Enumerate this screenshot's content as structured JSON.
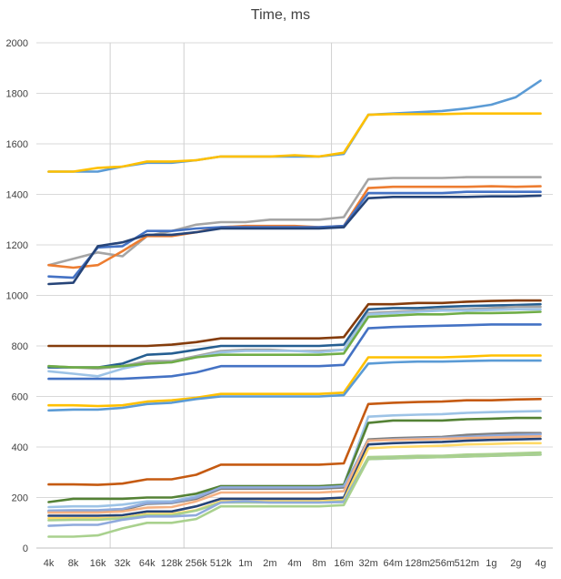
{
  "chart_data": {
    "type": "line",
    "title": "Time, ms",
    "xlabel": "",
    "ylabel": "",
    "ylim": [
      0,
      2000
    ],
    "y_ticks": [
      0,
      200,
      400,
      600,
      800,
      1000,
      1200,
      1400,
      1600,
      1800,
      2000
    ],
    "grid": "horizontal and selected vertical",
    "vertical_gridlines_at": [
      "32k",
      "256k",
      "16m"
    ],
    "legend": "none",
    "categories": [
      "4k",
      "8k",
      "16k",
      "32k",
      "64k",
      "128k",
      "256k",
      "512k",
      "1m",
      "2m",
      "4m",
      "8m",
      "16m",
      "32m",
      "64m",
      "128m",
      "256m",
      "512m",
      "1g",
      "2g",
      "4g"
    ],
    "series": [
      {
        "color": "#5b9bd5",
        "values": [
          1490,
          1490,
          1490,
          1510,
          1525,
          1525,
          1535,
          1550,
          1550,
          1550,
          1550,
          1550,
          1560,
          1715,
          1720,
          1725,
          1730,
          1740,
          1755,
          1785,
          1850
        ]
      },
      {
        "color": "#ffc000",
        "values": [
          1490,
          1490,
          1505,
          1510,
          1530,
          1530,
          1535,
          1550,
          1550,
          1550,
          1555,
          1550,
          1565,
          1715,
          1718,
          1718,
          1718,
          1720,
          1720,
          1720,
          1720
        ]
      },
      {
        "color": "#a5a5a5",
        "values": [
          1120,
          1145,
          1170,
          1155,
          1235,
          1255,
          1280,
          1290,
          1290,
          1300,
          1300,
          1300,
          1310,
          1460,
          1465,
          1465,
          1465,
          1468,
          1468,
          1468,
          1468
        ]
      },
      {
        "color": "#ed7d31",
        "values": [
          1120,
          1110,
          1120,
          1175,
          1235,
          1235,
          1250,
          1270,
          1275,
          1275,
          1275,
          1270,
          1275,
          1425,
          1430,
          1430,
          1430,
          1430,
          1432,
          1430,
          1432
        ]
      },
      {
        "color": "#4472c4",
        "values": [
          1075,
          1070,
          1190,
          1195,
          1255,
          1255,
          1265,
          1270,
          1270,
          1270,
          1270,
          1270,
          1275,
          1405,
          1405,
          1405,
          1405,
          1410,
          1410,
          1410,
          1410
        ]
      },
      {
        "color": "#264478",
        "values": [
          1045,
          1050,
          1195,
          1210,
          1240,
          1240,
          1250,
          1265,
          1265,
          1265,
          1265,
          1265,
          1270,
          1385,
          1390,
          1390,
          1390,
          1390,
          1392,
          1392,
          1395
        ]
      },
      {
        "color": "#843c0c",
        "values": [
          800,
          800,
          800,
          800,
          800,
          805,
          815,
          830,
          830,
          830,
          830,
          830,
          835,
          965,
          965,
          970,
          970,
          975,
          978,
          980,
          980
        ]
      },
      {
        "color": "#255e91",
        "values": [
          715,
          715,
          715,
          730,
          765,
          770,
          785,
          800,
          800,
          800,
          800,
          800,
          805,
          945,
          950,
          950,
          955,
          958,
          960,
          962,
          965
        ]
      },
      {
        "color": "#a5a5a5",
        "values": [
          720,
          715,
          710,
          720,
          740,
          740,
          760,
          780,
          785,
          785,
          780,
          780,
          785,
          930,
          935,
          940,
          945,
          945,
          950,
          955,
          955
        ]
      },
      {
        "color": "#9dc3e6",
        "values": [
          700,
          690,
          680,
          710,
          730,
          735,
          755,
          775,
          780,
          780,
          780,
          775,
          785,
          925,
          930,
          935,
          940,
          940,
          942,
          945,
          945
        ]
      },
      {
        "color": "#70ad47",
        "values": [
          720,
          715,
          715,
          720,
          730,
          735,
          755,
          765,
          765,
          765,
          765,
          765,
          770,
          915,
          920,
          925,
          925,
          930,
          930,
          932,
          935
        ]
      },
      {
        "color": "#4472c4",
        "values": [
          670,
          670,
          670,
          670,
          675,
          680,
          695,
          720,
          720,
          720,
          720,
          720,
          725,
          870,
          875,
          878,
          880,
          882,
          885,
          885,
          885
        ]
      },
      {
        "color": "#ffc000",
        "values": [
          565,
          565,
          562,
          565,
          580,
          585,
          595,
          610,
          610,
          610,
          610,
          610,
          615,
          755,
          755,
          755,
          755,
          758,
          762,
          762,
          762
        ]
      },
      {
        "color": "#5b9bd5",
        "values": [
          545,
          548,
          548,
          555,
          570,
          575,
          590,
          600,
          600,
          600,
          600,
          600,
          605,
          730,
          735,
          738,
          738,
          740,
          742,
          742,
          742
        ]
      },
      {
        "color": "#c55a11",
        "values": [
          252,
          252,
          250,
          255,
          272,
          272,
          290,
          330,
          330,
          330,
          330,
          330,
          335,
          570,
          575,
          578,
          580,
          585,
          585,
          588,
          590
        ]
      },
      {
        "color": "#9dc3e6",
        "values": [
          162,
          165,
          165,
          172,
          185,
          185,
          205,
          245,
          245,
          245,
          245,
          245,
          250,
          520,
          525,
          528,
          530,
          535,
          538,
          540,
          542
        ]
      },
      {
        "color": "#548235",
        "values": [
          182,
          195,
          195,
          195,
          200,
          200,
          215,
          245,
          245,
          245,
          245,
          245,
          250,
          495,
          505,
          505,
          505,
          510,
          512,
          515,
          515
        ]
      },
      {
        "color": "#7f7f7f",
        "values": [
          145,
          145,
          145,
          150,
          175,
          178,
          195,
          235,
          235,
          235,
          235,
          235,
          240,
          430,
          435,
          438,
          440,
          448,
          452,
          455,
          455
        ]
      },
      {
        "color": "#8faadc",
        "values": [
          148,
          150,
          150,
          155,
          178,
          180,
          200,
          240,
          240,
          240,
          240,
          240,
          245,
          425,
          430,
          433,
          436,
          440,
          445,
          448,
          450
        ]
      },
      {
        "color": "#f4b183",
        "values": [
          140,
          140,
          140,
          145,
          160,
          162,
          185,
          220,
          220,
          220,
          220,
          220,
          225,
          425,
          428,
          430,
          432,
          435,
          438,
          440,
          442
        ]
      },
      {
        "color": "#264478",
        "values": [
          128,
          128,
          128,
          130,
          145,
          145,
          165,
          195,
          195,
          195,
          195,
          195,
          200,
          410,
          415,
          418,
          420,
          425,
          428,
          430,
          432
        ]
      },
      {
        "color": "#ffd966",
        "values": [
          118,
          118,
          118,
          120,
          135,
          135,
          150,
          185,
          185,
          185,
          185,
          185,
          190,
          395,
          400,
          402,
          405,
          410,
          412,
          415,
          415
        ]
      },
      {
        "color": "#a9d18e",
        "values": [
          110,
          112,
          112,
          118,
          130,
          130,
          148,
          180,
          180,
          180,
          180,
          180,
          185,
          360,
          362,
          365,
          365,
          370,
          372,
          375,
          378
        ]
      },
      {
        "color": "#8faadc",
        "values": [
          88,
          92,
          92,
          112,
          125,
          125,
          130,
          180,
          185,
          180,
          180,
          180,
          182,
          352,
          355,
          358,
          360,
          362,
          365,
          368,
          370
        ]
      },
      {
        "color": "#a9d18e",
        "values": [
          45,
          45,
          50,
          78,
          100,
          100,
          115,
          165,
          165,
          165,
          165,
          165,
          170,
          352,
          355,
          358,
          360,
          362,
          365,
          368,
          370
        ]
      }
    ]
  }
}
